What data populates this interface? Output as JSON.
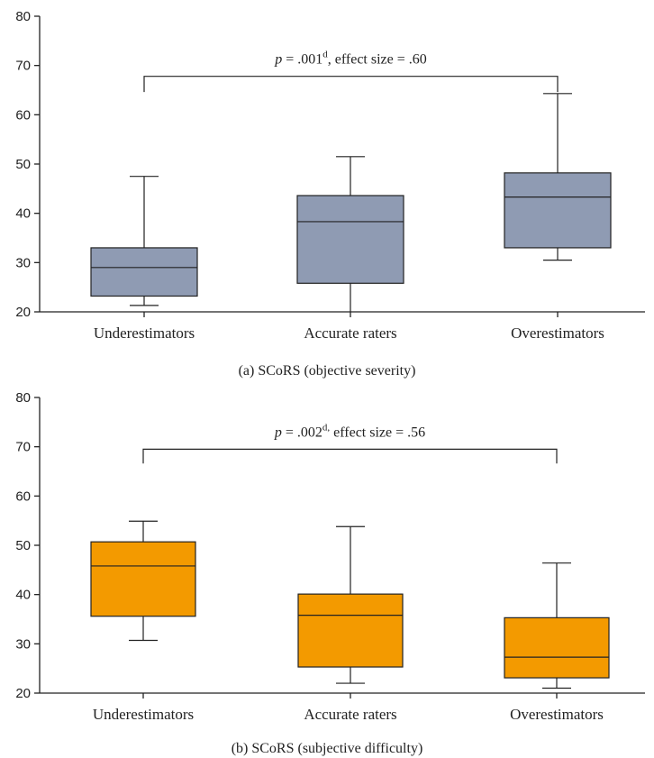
{
  "chart_data": [
    {
      "type": "box",
      "caption": "(a) SCoRS (objective severity)",
      "categories": [
        "Underestimators",
        "Accurate raters",
        "Overestimators"
      ],
      "ylim": [
        20,
        80
      ],
      "yticks": [
        20,
        30,
        40,
        50,
        60,
        70,
        80
      ],
      "box_color": "#8f9bb3",
      "boxes": [
        {
          "whisker_low": 21.3,
          "q1": 23.2,
          "median": 29.0,
          "q3": 33.0,
          "whisker_high": 47.5
        },
        {
          "whisker_low": 20.0,
          "q1": 25.8,
          "median": 38.3,
          "q3": 43.6,
          "whisker_high": 51.5
        },
        {
          "whisker_low": 30.5,
          "q1": 33.0,
          "median": 43.3,
          "q3": 48.2,
          "whisker_high": 64.3
        }
      ],
      "annotation": {
        "p_letter": "p",
        "text_before_sup": " = .001",
        "superscript": "d",
        "text_after_sup": ", effect size = .60",
        "from_category": 0,
        "to_category": 2,
        "bracket_y": 67.8,
        "drop_to": 64.6
      }
    },
    {
      "type": "box",
      "caption": "(b) SCoRS (subjective difficulty)",
      "categories": [
        "Underestimators",
        "Accurate raters",
        "Overestimators"
      ],
      "ylim": [
        20,
        80
      ],
      "yticks": [
        20,
        30,
        40,
        50,
        60,
        70,
        80
      ],
      "box_color": "#f39a00",
      "boxes": [
        {
          "whisker_low": 30.7,
          "q1": 35.6,
          "median": 45.8,
          "q3": 50.7,
          "whisker_high": 54.9
        },
        {
          "whisker_low": 22.0,
          "q1": 25.3,
          "median": 35.8,
          "q3": 40.1,
          "whisker_high": 53.8
        },
        {
          "whisker_low": 21.0,
          "q1": 23.1,
          "median": 27.3,
          "q3": 35.3,
          "whisker_high": 46.4
        }
      ],
      "annotation": {
        "p_letter": "p",
        "text_before_sup": " = .002",
        "superscript": "d,",
        "text_after_sup": " effect size = .56",
        "from_category": 0,
        "to_category": 2,
        "bracket_y": 69.5,
        "drop_to": 66.6
      }
    }
  ]
}
